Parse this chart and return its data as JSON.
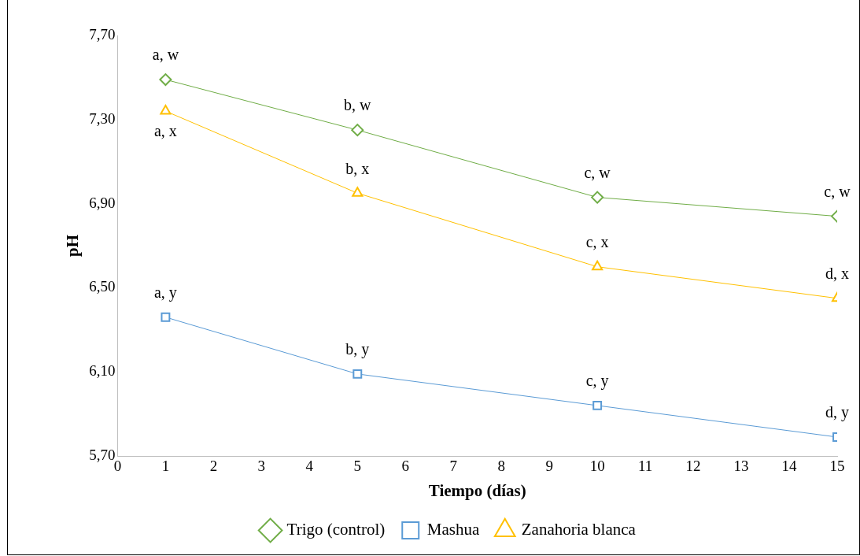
{
  "chart_data": {
    "type": "line",
    "xlabel": "Tiempo (días)",
    "ylabel": "pH",
    "xlim": [
      0,
      15
    ],
    "xticks": [
      0,
      1,
      2,
      3,
      4,
      5,
      6,
      7,
      8,
      9,
      10,
      11,
      12,
      13,
      14,
      15
    ],
    "ylim": [
      5.7,
      7.7
    ],
    "yticks": [
      {
        "value": 5.7,
        "label": "5,70"
      },
      {
        "value": 6.1,
        "label": "6,10"
      },
      {
        "value": 6.5,
        "label": "6,50"
      },
      {
        "value": 6.9,
        "label": "6,90"
      },
      {
        "value": 7.3,
        "label": "7,30"
      },
      {
        "value": 7.7,
        "label": "7,70"
      }
    ],
    "x": [
      1,
      5,
      10,
      15
    ],
    "series": [
      {
        "name": "Trigo (control)",
        "color": "#70ad47",
        "marker": "diamond",
        "values": [
          7.49,
          7.25,
          6.93,
          6.84
        ]
      },
      {
        "name": "Mashua",
        "color": "#5b9bd5",
        "marker": "square",
        "values": [
          6.36,
          6.09,
          5.94,
          5.79
        ]
      },
      {
        "name": "Zanahoria blanca",
        "color": "#ffc000",
        "marker": "triangle",
        "values": [
          7.34,
          6.95,
          6.6,
          6.45
        ]
      }
    ],
    "annotations": [
      {
        "text": "a, w",
        "x": 1,
        "y": 7.49
      },
      {
        "text": "b, w",
        "x": 5,
        "y": 7.25
      },
      {
        "text": "c, w",
        "x": 10,
        "y": 6.93
      },
      {
        "text": "c, w",
        "x": 15,
        "y": 6.84
      },
      {
        "text": "a, x",
        "x": 1,
        "y": 7.34
      },
      {
        "text": "b, x",
        "x": 5,
        "y": 6.95
      },
      {
        "text": "c, x",
        "x": 10,
        "y": 6.6
      },
      {
        "text": "d, x",
        "x": 15,
        "y": 6.45
      },
      {
        "text": "a, y",
        "x": 1,
        "y": 6.36
      },
      {
        "text": "b, y",
        "x": 5,
        "y": 6.09
      },
      {
        "text": "c, y",
        "x": 10,
        "y": 5.94
      },
      {
        "text": "d, y",
        "x": 15,
        "y": 5.79
      }
    ],
    "grid": false,
    "legend": "bottom",
    "line_style": "solid"
  }
}
